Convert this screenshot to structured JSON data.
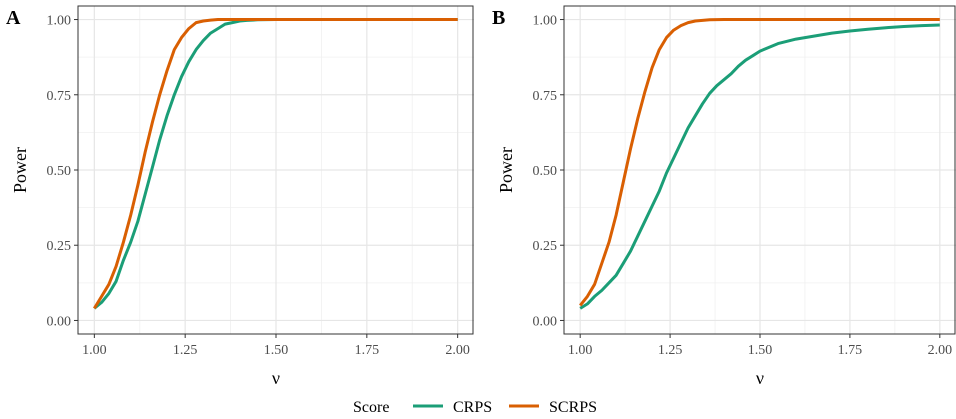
{
  "chart_data": [
    {
      "type": "line",
      "panel_tag": "A",
      "xlabel": "ν",
      "ylabel": "Power",
      "xlim": [
        1.0,
        2.0
      ],
      "ylim": [
        0.0,
        1.0
      ],
      "xticks": [
        "1.00",
        "1.25",
        "1.50",
        "1.75",
        "2.00"
      ],
      "yticks": [
        "0.00",
        "0.25",
        "0.50",
        "0.75",
        "1.00"
      ],
      "grid": true,
      "series": [
        {
          "name": "CRPS",
          "color": "#1b9e77",
          "x": [
            1.0,
            1.02,
            1.04,
            1.06,
            1.08,
            1.1,
            1.12,
            1.14,
            1.16,
            1.18,
            1.2,
            1.22,
            1.24,
            1.26,
            1.28,
            1.3,
            1.32,
            1.34,
            1.36,
            1.38,
            1.4,
            1.42,
            1.45,
            1.5,
            1.6,
            1.75,
            2.0
          ],
          "y": [
            0.04,
            0.06,
            0.09,
            0.13,
            0.2,
            0.26,
            0.33,
            0.42,
            0.51,
            0.6,
            0.68,
            0.75,
            0.81,
            0.86,
            0.9,
            0.93,
            0.955,
            0.97,
            0.985,
            0.99,
            0.995,
            0.997,
            0.999,
            1.0,
            1.0,
            1.0,
            1.0
          ]
        },
        {
          "name": "SCRPS",
          "color": "#d95f02",
          "x": [
            1.0,
            1.02,
            1.04,
            1.06,
            1.08,
            1.1,
            1.12,
            1.14,
            1.16,
            1.18,
            1.2,
            1.22,
            1.24,
            1.26,
            1.28,
            1.3,
            1.32,
            1.34,
            1.36,
            1.4,
            1.5,
            1.75,
            2.0
          ],
          "y": [
            0.04,
            0.08,
            0.12,
            0.18,
            0.26,
            0.35,
            0.45,
            0.56,
            0.66,
            0.75,
            0.83,
            0.9,
            0.94,
            0.97,
            0.99,
            0.995,
            0.998,
            1.0,
            1.0,
            1.0,
            1.0,
            1.0,
            1.0
          ]
        }
      ]
    },
    {
      "type": "line",
      "panel_tag": "B",
      "xlabel": "ν",
      "ylabel": "Power",
      "xlim": [
        1.0,
        2.0
      ],
      "ylim": [
        0.0,
        1.0
      ],
      "xticks": [
        "1.00",
        "1.25",
        "1.50",
        "1.75",
        "2.00"
      ],
      "yticks": [
        "0.00",
        "0.25",
        "0.50",
        "0.75",
        "1.00"
      ],
      "grid": true,
      "series": [
        {
          "name": "CRPS",
          "color": "#1b9e77",
          "x": [
            1.0,
            1.02,
            1.04,
            1.06,
            1.08,
            1.1,
            1.12,
            1.14,
            1.16,
            1.18,
            1.2,
            1.22,
            1.24,
            1.26,
            1.28,
            1.3,
            1.32,
            1.34,
            1.36,
            1.38,
            1.4,
            1.42,
            1.44,
            1.46,
            1.48,
            1.5,
            1.55,
            1.6,
            1.65,
            1.7,
            1.75,
            1.8,
            1.85,
            1.9,
            1.95,
            2.0
          ],
          "y": [
            0.04,
            0.055,
            0.08,
            0.1,
            0.125,
            0.15,
            0.19,
            0.23,
            0.28,
            0.33,
            0.38,
            0.43,
            0.49,
            0.54,
            0.59,
            0.64,
            0.68,
            0.72,
            0.755,
            0.78,
            0.8,
            0.82,
            0.845,
            0.865,
            0.88,
            0.895,
            0.92,
            0.935,
            0.945,
            0.955,
            0.962,
            0.968,
            0.973,
            0.977,
            0.98,
            0.982
          ]
        },
        {
          "name": "SCRPS",
          "color": "#d95f02",
          "x": [
            1.0,
            1.02,
            1.04,
            1.06,
            1.08,
            1.1,
            1.12,
            1.14,
            1.16,
            1.18,
            1.2,
            1.22,
            1.24,
            1.26,
            1.28,
            1.3,
            1.32,
            1.34,
            1.36,
            1.4,
            1.5,
            1.75,
            2.0
          ],
          "y": [
            0.05,
            0.08,
            0.12,
            0.19,
            0.26,
            0.35,
            0.46,
            0.57,
            0.67,
            0.76,
            0.84,
            0.9,
            0.94,
            0.965,
            0.98,
            0.99,
            0.995,
            0.997,
            0.999,
            1.0,
            1.0,
            1.0,
            1.0
          ]
        }
      ]
    }
  ],
  "legend": {
    "title": "Score",
    "items": [
      {
        "label": "CRPS",
        "color": "#1b9e77"
      },
      {
        "label": "SCRPS",
        "color": "#d95f02"
      }
    ]
  }
}
